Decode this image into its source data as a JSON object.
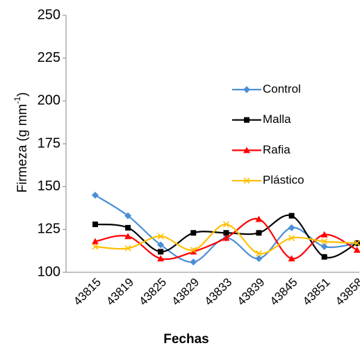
{
  "chart_data": {
    "type": "line",
    "x_label": "Fechas",
    "y_label": "Firmeza (g mm",
    "y_label_sup": "-1",
    "y_label_end": ")",
    "categories": [
      "43815",
      "43819",
      "43825",
      "43829",
      "43833",
      "43839",
      "43845",
      "43851",
      "43858"
    ],
    "series": [
      {
        "name": "Control",
        "color": "#4a8fd4",
        "marker": "diamond",
        "values": [
          145,
          133,
          116,
          106,
          120,
          108,
          126,
          115,
          117
        ]
      },
      {
        "name": "Malla",
        "color": "#000000",
        "marker": "square",
        "values": [
          128,
          126,
          112,
          123,
          123,
          123,
          133,
          109,
          117
        ]
      },
      {
        "name": "Rafia",
        "color": "#ff0000",
        "marker": "triangle",
        "values": [
          118,
          121,
          108,
          112,
          120,
          131,
          108,
          122,
          113
        ]
      },
      {
        "name": "Plástico",
        "color": "#ffc000",
        "marker": "x",
        "values": [
          115,
          114,
          121,
          113,
          128,
          111,
          120,
          118,
          117
        ]
      }
    ],
    "ylim": [
      100,
      250
    ],
    "yticks": [
      100,
      125,
      150,
      175,
      200,
      225,
      250
    ],
    "smooth": true,
    "legend": "right"
  }
}
